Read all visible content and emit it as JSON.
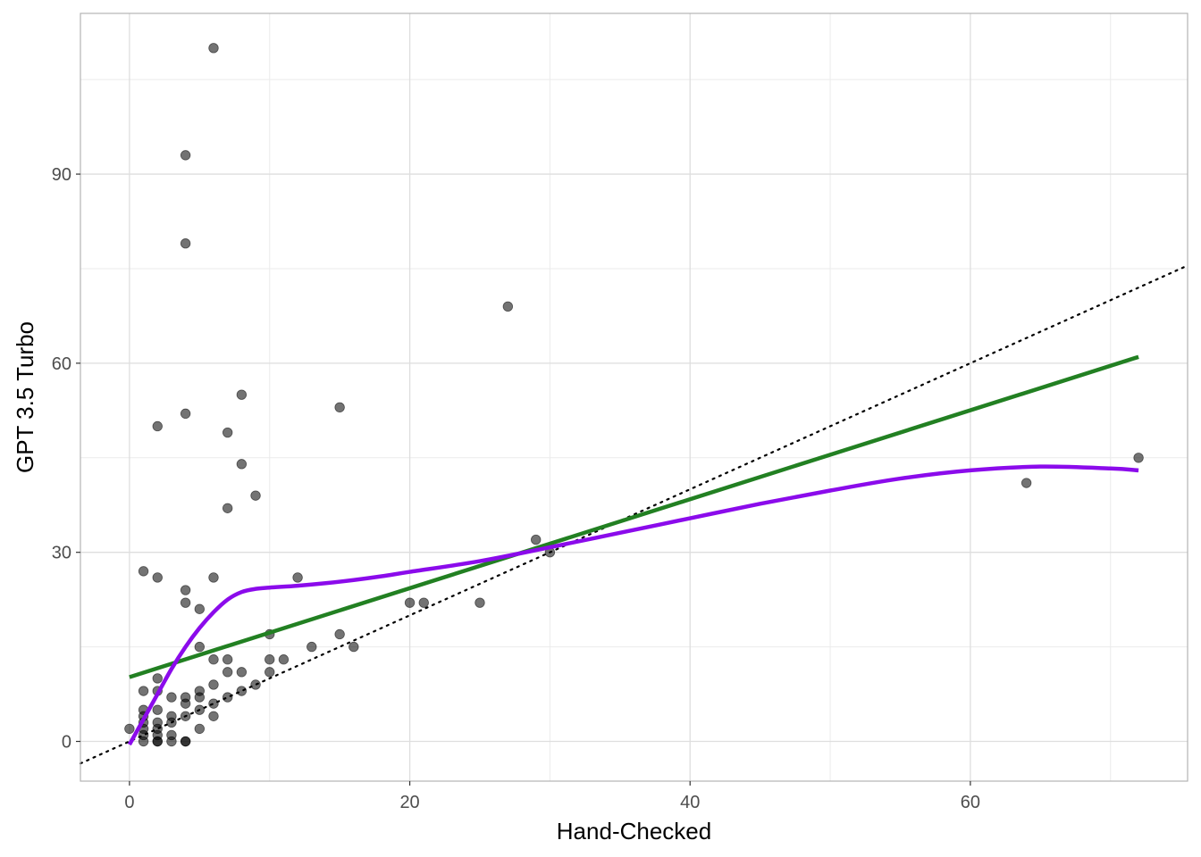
{
  "chart_data": {
    "type": "scatter",
    "title": "",
    "xlabel": "Hand-Checked",
    "ylabel": "GPT 3.5 Turbo",
    "xlim": [
      -3.5,
      75.5
    ],
    "ylim": [
      -6.3,
      115.5
    ],
    "x_ticks": [
      0,
      20,
      40,
      60
    ],
    "y_ticks": [
      0,
      30,
      60,
      90
    ],
    "grid": true,
    "legend": "none",
    "points": [
      [
        6,
        110
      ],
      [
        4,
        93
      ],
      [
        4,
        79
      ],
      [
        27,
        69
      ],
      [
        8,
        55
      ],
      [
        15,
        53
      ],
      [
        4,
        52
      ],
      [
        2,
        50
      ],
      [
        7,
        49
      ],
      [
        8,
        44
      ],
      [
        72,
        45
      ],
      [
        64,
        41
      ],
      [
        9,
        39
      ],
      [
        7,
        37
      ],
      [
        29,
        32
      ],
      [
        30,
        30
      ],
      [
        1,
        27
      ],
      [
        2,
        26
      ],
      [
        6,
        26
      ],
      [
        12,
        26
      ],
      [
        4,
        24
      ],
      [
        4,
        22
      ],
      [
        5,
        21
      ],
      [
        20,
        22
      ],
      [
        21,
        22
      ],
      [
        25,
        22
      ],
      [
        10,
        17
      ],
      [
        15,
        17
      ],
      [
        5,
        15
      ],
      [
        13,
        15
      ],
      [
        16,
        15
      ],
      [
        6,
        13
      ],
      [
        7,
        13
      ],
      [
        10,
        13
      ],
      [
        11,
        13
      ],
      [
        7,
        11
      ],
      [
        8,
        11
      ],
      [
        10,
        11
      ],
      [
        2,
        10
      ],
      [
        6,
        9
      ],
      [
        9,
        9
      ],
      [
        1,
        8
      ],
      [
        2,
        8
      ],
      [
        5,
        8
      ],
      [
        8,
        8
      ],
      [
        3,
        7
      ],
      [
        4,
        7
      ],
      [
        5,
        7
      ],
      [
        7,
        7
      ],
      [
        4,
        6
      ],
      [
        6,
        6
      ],
      [
        1,
        5
      ],
      [
        2,
        5
      ],
      [
        5,
        5
      ],
      [
        1,
        4
      ],
      [
        3,
        4
      ],
      [
        4,
        4
      ],
      [
        6,
        4
      ],
      [
        1,
        3
      ],
      [
        2,
        3
      ],
      [
        3,
        3
      ],
      [
        1,
        2
      ],
      [
        2,
        2
      ],
      [
        0,
        2
      ],
      [
        5,
        2
      ],
      [
        1,
        1
      ],
      [
        2,
        1
      ],
      [
        3,
        1
      ],
      [
        1,
        0
      ],
      [
        2,
        0
      ],
      [
        3,
        0
      ],
      [
        4,
        0
      ],
      [
        2,
        0
      ],
      [
        4,
        0
      ]
    ],
    "point_color": "#000000",
    "point_opacity": 0.55,
    "reference_line": {
      "style": "dotted",
      "color": "#000000",
      "slope": 1,
      "intercept": 0
    },
    "linear_fit": {
      "color": "#228022",
      "x": [
        0,
        72
      ],
      "y": [
        10.2,
        61
      ]
    },
    "smooth_fit": {
      "color": "#8B0BEB",
      "x": [
        0,
        1,
        2,
        3,
        4,
        5,
        6,
        7,
        8,
        9,
        10,
        12,
        14,
        16,
        18,
        20,
        25,
        30,
        35,
        40,
        45,
        50,
        55,
        60,
        65,
        70,
        72
      ],
      "y": [
        -0.5,
        3.5,
        7.5,
        11.5,
        15,
        18,
        20.5,
        22.5,
        23.7,
        24.2,
        24.4,
        24.7,
        25.1,
        25.6,
        26.2,
        26.9,
        28.6,
        30.8,
        33.1,
        35.4,
        37.7,
        39.8,
        41.7,
        43,
        43.6,
        43.3,
        43
      ]
    }
  }
}
